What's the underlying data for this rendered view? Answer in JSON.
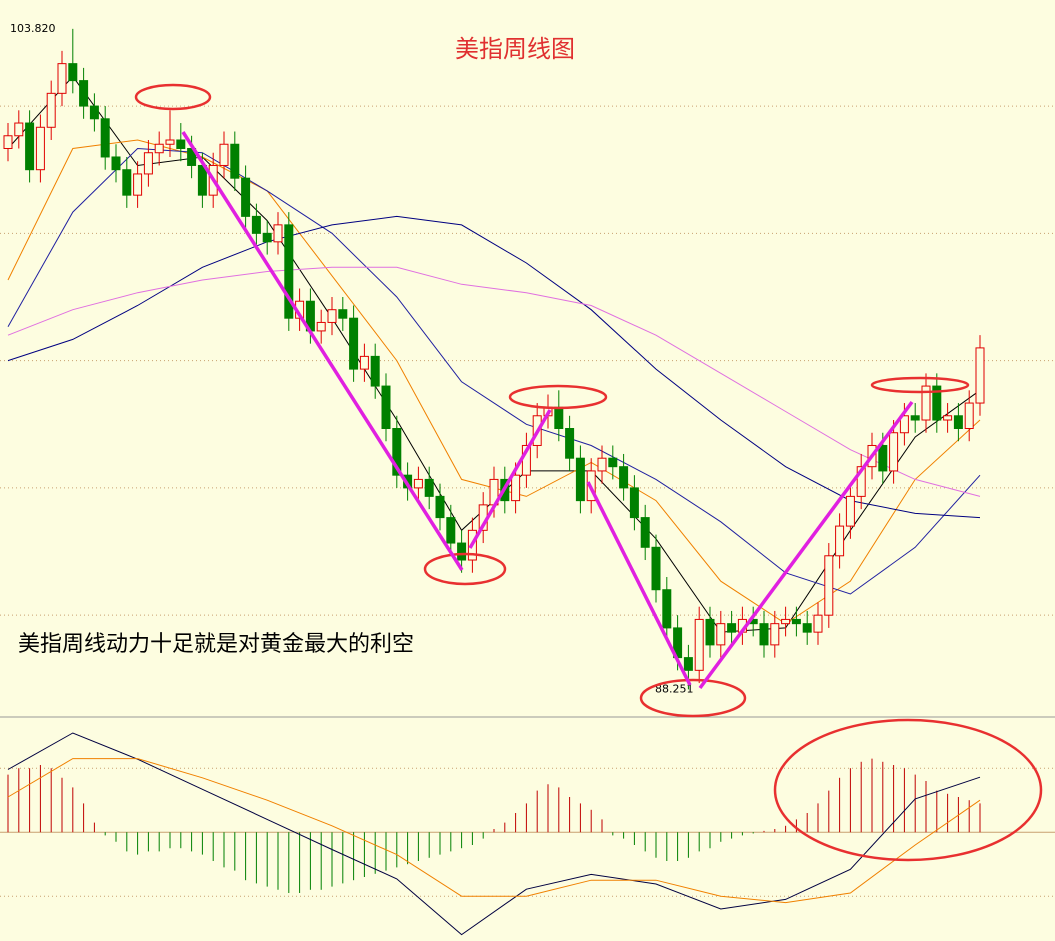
{
  "chart_data": [
    {
      "type": "candlestick",
      "title": "美指周线图",
      "annotation": "美指周线动力十足就是对黄金最大的利空",
      "up_color": "#e00000",
      "down_color": "#008000",
      "ylim": [
        87.6,
        104.5
      ],
      "gridlines": [
        102,
        99,
        96,
        93,
        90
      ],
      "high_label": {
        "value": 103.82,
        "label": "103.820"
      },
      "low_label": {
        "value": 88.251,
        "label": "88.251"
      },
      "open": [
        101.0,
        101.3,
        101.6,
        100.5,
        101.5,
        102.3,
        103.0,
        102.6,
        102.0,
        101.7,
        100.8,
        100.5,
        99.9,
        100.4,
        100.9,
        101.1,
        101.2,
        101.0,
        100.6,
        99.9,
        100.6,
        101.1,
        100.3,
        99.4,
        99.0,
        98.8,
        99.2,
        97.0,
        97.4,
        96.7,
        96.9,
        97.2,
        97.0,
        95.8,
        96.1,
        95.4,
        94.4,
        93.3,
        93.0,
        93.2,
        92.8,
        92.3,
        91.7,
        91.3,
        92.0,
        92.6,
        93.2,
        92.7,
        93.3,
        94.0,
        94.7,
        94.9,
        94.4,
        93.7,
        92.7,
        93.4,
        93.7,
        93.5,
        93.0,
        92.3,
        91.6,
        90.6,
        89.7,
        89.0,
        88.7,
        89.9,
        89.3,
        89.8,
        89.6,
        89.9,
        89.8,
        89.3,
        89.8,
        89.9,
        89.8,
        89.6,
        90.0,
        91.4,
        92.1,
        92.8,
        93.5,
        94.0,
        93.4,
        94.3,
        94.7,
        94.6,
        95.4,
        94.6,
        94.7,
        94.4,
        95.0
      ],
      "high": [
        101.6,
        101.9,
        101.9,
        101.8,
        102.6,
        103.3,
        103.82,
        102.9,
        102.3,
        102.0,
        101.1,
        100.8,
        100.7,
        101.2,
        101.4,
        101.9,
        101.6,
        101.3,
        100.9,
        100.9,
        101.4,
        101.4,
        100.6,
        99.7,
        99.3,
        99.5,
        99.5,
        97.7,
        97.7,
        97.2,
        97.5,
        97.5,
        97.3,
        96.4,
        96.4,
        95.7,
        94.7,
        93.6,
        93.5,
        93.5,
        93.1,
        92.6,
        92.0,
        92.3,
        92.9,
        93.5,
        93.5,
        93.6,
        94.3,
        95.0,
        95.2,
        95.3,
        94.7,
        94.0,
        93.7,
        94.0,
        94.0,
        93.8,
        93.3,
        92.6,
        91.9,
        90.9,
        90.0,
        89.3,
        90.2,
        90.2,
        90.1,
        90.1,
        90.2,
        90.2,
        90.1,
        90.1,
        90.2,
        90.2,
        90.1,
        90.3,
        91.7,
        92.4,
        93.1,
        93.8,
        94.3,
        94.3,
        94.6,
        95.0,
        95.0,
        95.7,
        95.7,
        95.0,
        95.0,
        95.3,
        96.6
      ],
      "low": [
        100.7,
        101.0,
        100.2,
        100.2,
        101.2,
        102.0,
        102.3,
        101.7,
        101.4,
        100.5,
        100.2,
        99.6,
        99.6,
        100.1,
        100.6,
        100.8,
        100.7,
        100.3,
        99.6,
        99.6,
        100.3,
        100.0,
        99.1,
        98.7,
        98.5,
        98.5,
        96.7,
        96.7,
        96.4,
        96.4,
        96.6,
        96.7,
        95.5,
        95.5,
        95.1,
        94.1,
        93.0,
        92.7,
        92.7,
        92.5,
        92.0,
        91.4,
        91.0,
        91.0,
        91.7,
        92.3,
        92.4,
        92.4,
        93.0,
        93.7,
        94.4,
        94.1,
        93.4,
        92.4,
        92.4,
        93.1,
        93.2,
        92.7,
        92.0,
        91.3,
        90.3,
        89.4,
        88.7,
        88.251,
        88.4,
        89.0,
        89.0,
        89.3,
        89.3,
        89.5,
        89.0,
        89.0,
        89.5,
        89.5,
        89.3,
        89.3,
        89.7,
        91.1,
        91.8,
        92.5,
        93.2,
        93.1,
        93.1,
        94.0,
        94.3,
        94.3,
        94.3,
        94.3,
        94.1,
        94.1,
        94.7
      ],
      "close": [
        101.3,
        101.6,
        100.5,
        101.5,
        102.3,
        103.0,
        102.6,
        102.0,
        101.7,
        100.8,
        100.5,
        99.9,
        100.4,
        100.9,
        101.1,
        101.2,
        101.0,
        100.6,
        99.9,
        100.6,
        101.1,
        100.3,
        99.4,
        99.0,
        98.8,
        99.2,
        97.0,
        97.4,
        96.7,
        96.9,
        97.2,
        97.0,
        95.8,
        96.1,
        95.4,
        94.4,
        93.3,
        93.0,
        93.2,
        92.8,
        92.3,
        91.7,
        91.3,
        92.0,
        92.6,
        93.2,
        92.7,
        93.3,
        94.0,
        94.7,
        94.9,
        94.4,
        93.7,
        92.7,
        93.4,
        93.7,
        93.5,
        93.0,
        92.3,
        91.6,
        90.6,
        89.7,
        89.0,
        88.7,
        89.9,
        89.3,
        89.8,
        89.6,
        89.9,
        89.8,
        89.3,
        89.8,
        89.9,
        89.8,
        89.6,
        90.0,
        91.4,
        92.1,
        92.8,
        93.5,
        94.0,
        93.4,
        94.3,
        94.7,
        94.6,
        95.4,
        94.6,
        94.7,
        94.4,
        95.0,
        96.3
      ],
      "lines": [
        {
          "color": "#000000",
          "x": [
            0,
            6,
            12,
            18,
            24,
            30,
            36,
            42,
            48,
            54,
            60,
            66,
            72,
            78,
            84,
            90
          ],
          "values": [
            101.0,
            102.7,
            100.6,
            100.8,
            99.3,
            97.0,
            94.6,
            92.0,
            93.4,
            93.4,
            91.8,
            89.6,
            89.7,
            92.0,
            94.2,
            95.3
          ]
        },
        {
          "color": "#f08000",
          "x": [
            0,
            6,
            12,
            18,
            24,
            30,
            36,
            42,
            48,
            54,
            60,
            66,
            72,
            78,
            84,
            90
          ],
          "values": [
            97.9,
            101.0,
            101.2,
            100.8,
            100.0,
            98.0,
            96.0,
            93.2,
            92.8,
            93.6,
            92.7,
            90.8,
            89.8,
            90.8,
            93.2,
            94.6
          ]
        },
        {
          "color": "#2020a0",
          "x": [
            0,
            6,
            12,
            18,
            24,
            30,
            36,
            42,
            48,
            54,
            60,
            66,
            72,
            78,
            84,
            90
          ],
          "values": [
            96.8,
            99.5,
            101.0,
            100.9,
            100.0,
            99.0,
            97.5,
            95.5,
            94.5,
            94.0,
            93.2,
            92.2,
            91.0,
            90.5,
            91.6,
            93.3
          ]
        },
        {
          "color": "#000080",
          "x": [
            0,
            6,
            12,
            18,
            24,
            30,
            36,
            42,
            48,
            54,
            60,
            66,
            72,
            78,
            84,
            90
          ],
          "values": [
            96.0,
            96.5,
            97.3,
            98.2,
            98.8,
            99.2,
            99.4,
            99.2,
            98.3,
            97.2,
            95.8,
            94.6,
            93.5,
            92.7,
            92.4,
            92.3
          ]
        },
        {
          "color": "#e070e0",
          "x": [
            0,
            6,
            12,
            18,
            24,
            30,
            36,
            42,
            48,
            54,
            60,
            66,
            72,
            78,
            84,
            90
          ],
          "values": [
            96.6,
            97.2,
            97.6,
            97.9,
            98.1,
            98.2,
            98.2,
            97.8,
            97.6,
            97.3,
            96.6,
            95.7,
            94.8,
            93.9,
            93.2,
            92.8
          ]
        }
      ]
    },
    {
      "type": "macd",
      "ylim": [
        -1.7,
        1.8
      ],
      "gridlines": [
        1,
        0,
        -1
      ],
      "up_color": "#c00000",
      "down_color": "#008000",
      "values": [
        0.9,
        1.0,
        1.0,
        1.05,
        1.0,
        0.85,
        0.7,
        0.45,
        0.15,
        -0.05,
        -0.15,
        -0.3,
        -0.35,
        -0.3,
        -0.3,
        -0.25,
        -0.25,
        -0.3,
        -0.35,
        -0.45,
        -0.55,
        -0.6,
        -0.75,
        -0.8,
        -0.85,
        -0.9,
        -0.95,
        -0.95,
        -0.9,
        -0.9,
        -0.85,
        -0.8,
        -0.75,
        -0.7,
        -0.65,
        -0.6,
        -0.55,
        -0.5,
        -0.45,
        -0.4,
        -0.35,
        -0.3,
        -0.25,
        -0.2,
        -0.1,
        0.05,
        0.15,
        0.3,
        0.45,
        0.65,
        0.75,
        0.7,
        0.55,
        0.45,
        0.35,
        0.2,
        -0.05,
        -0.1,
        -0.2,
        -0.3,
        -0.4,
        -0.45,
        -0.45,
        -0.4,
        -0.3,
        -0.25,
        -0.15,
        -0.1,
        -0.05,
        -0.02,
        0.02,
        0.05,
        0.1,
        0.2,
        0.3,
        0.45,
        0.65,
        0.85,
        1.0,
        1.1,
        1.15,
        1.1,
        1.05,
        1.0,
        0.9,
        0.8,
        0.65,
        0.6,
        0.55,
        0.5,
        0.45
      ],
      "lines": [
        {
          "color": "#000040",
          "x": [
            0,
            6,
            12,
            18,
            24,
            30,
            36,
            42,
            48,
            54,
            60,
            66,
            72,
            78,
            84,
            90
          ],
          "values": [
            0.98,
            1.55,
            1.14,
            0.67,
            0.2,
            -0.27,
            -0.73,
            -1.6,
            -0.89,
            -0.66,
            -0.81,
            -1.2,
            -1.05,
            -0.58,
            0.52,
            0.86
          ]
        },
        {
          "color": "#f08000",
          "x": [
            0,
            6,
            12,
            18,
            24,
            30,
            36,
            42,
            48,
            54,
            60,
            66,
            72,
            78,
            84,
            90
          ],
          "values": [
            0.55,
            1.15,
            1.15,
            0.85,
            0.5,
            0.1,
            -0.35,
            -1.0,
            -1.0,
            -0.75,
            -0.75,
            -1.0,
            -1.1,
            -0.95,
            -0.2,
            0.5
          ]
        }
      ]
    }
  ]
}
